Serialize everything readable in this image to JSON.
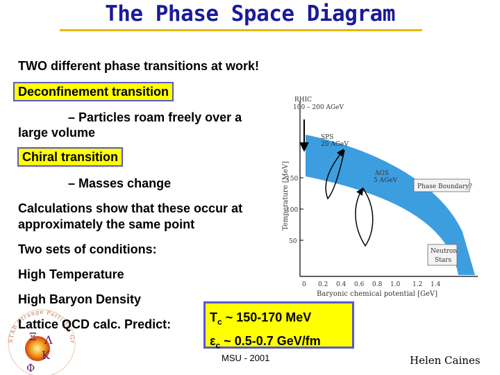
{
  "title": "The Phase Space Diagram",
  "intro": "TWO different phase transitions at work!",
  "deconfinement": {
    "label": "Deconfinement transition",
    "detail_line1": "– Particles roam freely over a",
    "detail_line2": "large volume"
  },
  "chiral": {
    "label": "Chiral  transition",
    "detail": "– Masses change"
  },
  "calculations": {
    "line1": "Calculations show that these occur at",
    "line2": "approximately the same point"
  },
  "conditions": {
    "heading": "Two sets of conditions:",
    "item1": "High Temperature",
    "item2": "High Baryon Density"
  },
  "lattice": "Lattice QCD calc. Predict:",
  "formula": {
    "tc_symbol": "T",
    "tc_sub": "c",
    "tc_value": " ~ 150-170 MeV",
    "ec_symbol": "ε",
    "ec_sub": "c",
    "ec_value": " ~ 0.5-0.7 GeV/fm"
  },
  "footer": {
    "center": "MSU - 2001",
    "author": "Helen Caines"
  },
  "diagram": {
    "ylabel": "Temperature [MeV]",
    "xlabel": "Baryonic chemical potential [GeV]",
    "y_ticks": [
      "150",
      "100",
      "50"
    ],
    "x_ticks": [
      "0",
      "0.2",
      "0.4",
      "0.6",
      "0.8",
      "1.0",
      "1.2",
      "1.4"
    ],
    "rhic_label1": "RHIC",
    "rhic_label2": "100 – 200 AGeV",
    "sps_label1": "SPS",
    "sps_label2": "20 AGeV",
    "ags_label1": "AGS",
    "ags_label2": "5 AGeV",
    "phase_boundary": "Phase Boundary?",
    "neutron1": "Neutron",
    "neutron2": "Stars",
    "band_color": "#3399dd"
  },
  "logo": {
    "greek1": "Ξ",
    "greek2": "Λ",
    "greek3": "Κ",
    "greek4": "Φ",
    "ring_text": "STAR Strange Particles Group"
  }
}
